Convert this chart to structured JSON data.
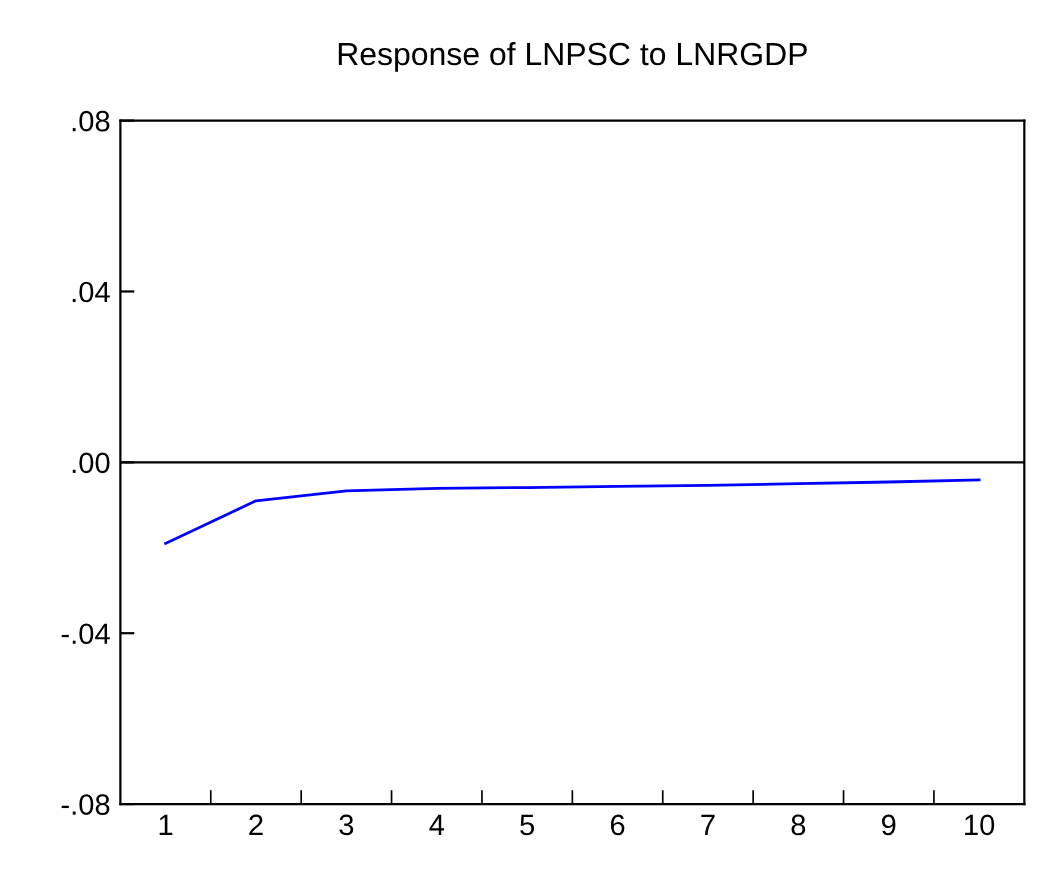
{
  "chart_data": {
    "type": "line",
    "title": "Response of LNPSC to LNRGDP",
    "categories": [
      "1",
      "2",
      "3",
      "4",
      "5",
      "6",
      "7",
      "8",
      "9",
      "10"
    ],
    "series": [
      {
        "color": "#0000ff",
        "values": [
          -0.019,
          -0.009,
          -0.0067,
          -0.0061,
          -0.0059,
          -0.0056,
          -0.0054,
          -0.005,
          -0.0046,
          -0.0041
        ]
      }
    ],
    "ylim": [
      -0.08,
      0.08
    ],
    "yticks": [
      {
        "value": -0.08,
        "label": "-.08"
      },
      {
        "value": -0.04,
        "label": "-.04"
      },
      {
        "value": 0,
        "label": ".00"
      },
      {
        "value": 0.04,
        "label": ".04"
      },
      {
        "value": 0.08,
        "label": ".08"
      }
    ],
    "ref_lines": [
      {
        "axis": "y",
        "value": 0,
        "color": "#000000"
      }
    ],
    "grid": false,
    "legend": false,
    "marker": "none",
    "line_style": "solid"
  }
}
